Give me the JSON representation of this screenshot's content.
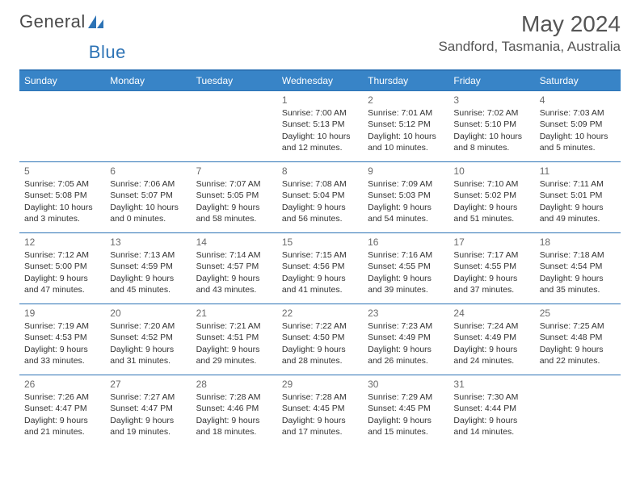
{
  "logo": {
    "text1": "General",
    "text2": "Blue"
  },
  "title": "May 2024",
  "location": "Sandford, Tasmania, Australia",
  "dayHeaders": [
    "Sunday",
    "Monday",
    "Tuesday",
    "Wednesday",
    "Thursday",
    "Friday",
    "Saturday"
  ],
  "colors": {
    "headerBg": "#3884c7",
    "border": "#2d73b5",
    "text": "#333333",
    "titleText": "#555555"
  },
  "firstDayOffset": 3,
  "days": [
    {
      "n": 1,
      "sr": "7:00 AM",
      "ss": "5:13 PM",
      "dl": "10 hours and 12 minutes."
    },
    {
      "n": 2,
      "sr": "7:01 AM",
      "ss": "5:12 PM",
      "dl": "10 hours and 10 minutes."
    },
    {
      "n": 3,
      "sr": "7:02 AM",
      "ss": "5:10 PM",
      "dl": "10 hours and 8 minutes."
    },
    {
      "n": 4,
      "sr": "7:03 AM",
      "ss": "5:09 PM",
      "dl": "10 hours and 5 minutes."
    },
    {
      "n": 5,
      "sr": "7:05 AM",
      "ss": "5:08 PM",
      "dl": "10 hours and 3 minutes."
    },
    {
      "n": 6,
      "sr": "7:06 AM",
      "ss": "5:07 PM",
      "dl": "10 hours and 0 minutes."
    },
    {
      "n": 7,
      "sr": "7:07 AM",
      "ss": "5:05 PM",
      "dl": "9 hours and 58 minutes."
    },
    {
      "n": 8,
      "sr": "7:08 AM",
      "ss": "5:04 PM",
      "dl": "9 hours and 56 minutes."
    },
    {
      "n": 9,
      "sr": "7:09 AM",
      "ss": "5:03 PM",
      "dl": "9 hours and 54 minutes."
    },
    {
      "n": 10,
      "sr": "7:10 AM",
      "ss": "5:02 PM",
      "dl": "9 hours and 51 minutes."
    },
    {
      "n": 11,
      "sr": "7:11 AM",
      "ss": "5:01 PM",
      "dl": "9 hours and 49 minutes."
    },
    {
      "n": 12,
      "sr": "7:12 AM",
      "ss": "5:00 PM",
      "dl": "9 hours and 47 minutes."
    },
    {
      "n": 13,
      "sr": "7:13 AM",
      "ss": "4:59 PM",
      "dl": "9 hours and 45 minutes."
    },
    {
      "n": 14,
      "sr": "7:14 AM",
      "ss": "4:57 PM",
      "dl": "9 hours and 43 minutes."
    },
    {
      "n": 15,
      "sr": "7:15 AM",
      "ss": "4:56 PM",
      "dl": "9 hours and 41 minutes."
    },
    {
      "n": 16,
      "sr": "7:16 AM",
      "ss": "4:55 PM",
      "dl": "9 hours and 39 minutes."
    },
    {
      "n": 17,
      "sr": "7:17 AM",
      "ss": "4:55 PM",
      "dl": "9 hours and 37 minutes."
    },
    {
      "n": 18,
      "sr": "7:18 AM",
      "ss": "4:54 PM",
      "dl": "9 hours and 35 minutes."
    },
    {
      "n": 19,
      "sr": "7:19 AM",
      "ss": "4:53 PM",
      "dl": "9 hours and 33 minutes."
    },
    {
      "n": 20,
      "sr": "7:20 AM",
      "ss": "4:52 PM",
      "dl": "9 hours and 31 minutes."
    },
    {
      "n": 21,
      "sr": "7:21 AM",
      "ss": "4:51 PM",
      "dl": "9 hours and 29 minutes."
    },
    {
      "n": 22,
      "sr": "7:22 AM",
      "ss": "4:50 PM",
      "dl": "9 hours and 28 minutes."
    },
    {
      "n": 23,
      "sr": "7:23 AM",
      "ss": "4:49 PM",
      "dl": "9 hours and 26 minutes."
    },
    {
      "n": 24,
      "sr": "7:24 AM",
      "ss": "4:49 PM",
      "dl": "9 hours and 24 minutes."
    },
    {
      "n": 25,
      "sr": "7:25 AM",
      "ss": "4:48 PM",
      "dl": "9 hours and 22 minutes."
    },
    {
      "n": 26,
      "sr": "7:26 AM",
      "ss": "4:47 PM",
      "dl": "9 hours and 21 minutes."
    },
    {
      "n": 27,
      "sr": "7:27 AM",
      "ss": "4:47 PM",
      "dl": "9 hours and 19 minutes."
    },
    {
      "n": 28,
      "sr": "7:28 AM",
      "ss": "4:46 PM",
      "dl": "9 hours and 18 minutes."
    },
    {
      "n": 29,
      "sr": "7:28 AM",
      "ss": "4:45 PM",
      "dl": "9 hours and 17 minutes."
    },
    {
      "n": 30,
      "sr": "7:29 AM",
      "ss": "4:45 PM",
      "dl": "9 hours and 15 minutes."
    },
    {
      "n": 31,
      "sr": "7:30 AM",
      "ss": "4:44 PM",
      "dl": "9 hours and 14 minutes."
    }
  ],
  "labels": {
    "sunrise": "Sunrise:",
    "sunset": "Sunset:",
    "daylight": "Daylight:"
  }
}
